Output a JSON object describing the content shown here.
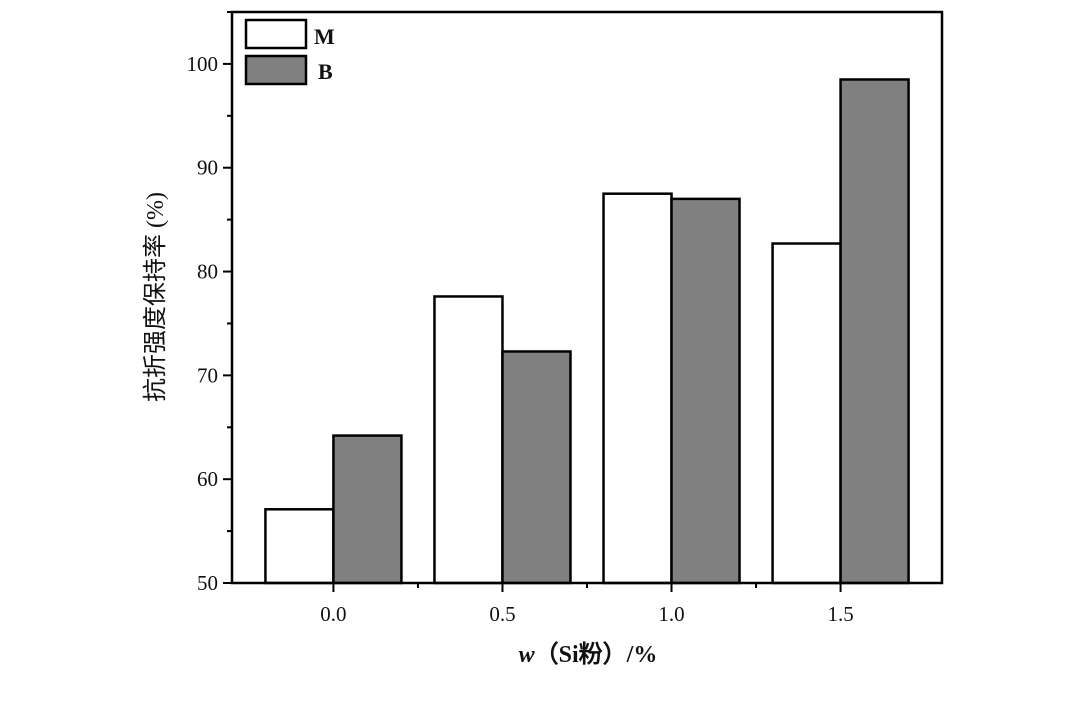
{
  "chart_data": {
    "type": "bar",
    "categories": [
      "0.0",
      "0.5",
      "1.0",
      "1.5"
    ],
    "series": [
      {
        "name": "M",
        "values": [
          57.1,
          77.6,
          87.5,
          82.7
        ],
        "color": "#ffffff"
      },
      {
        "name": "B",
        "values": [
          64.2,
          72.3,
          87.0,
          98.5
        ],
        "color": "#808080"
      }
    ],
    "xlabel_italic": "w",
    "xlabel_rest": "（Si粉）/%",
    "ylabel": "抗折强度保持率 (%)",
    "ylim": [
      50,
      105
    ],
    "yticks": [
      50,
      60,
      70,
      80,
      90,
      100
    ],
    "grid": false,
    "legend_position": "top-left"
  }
}
